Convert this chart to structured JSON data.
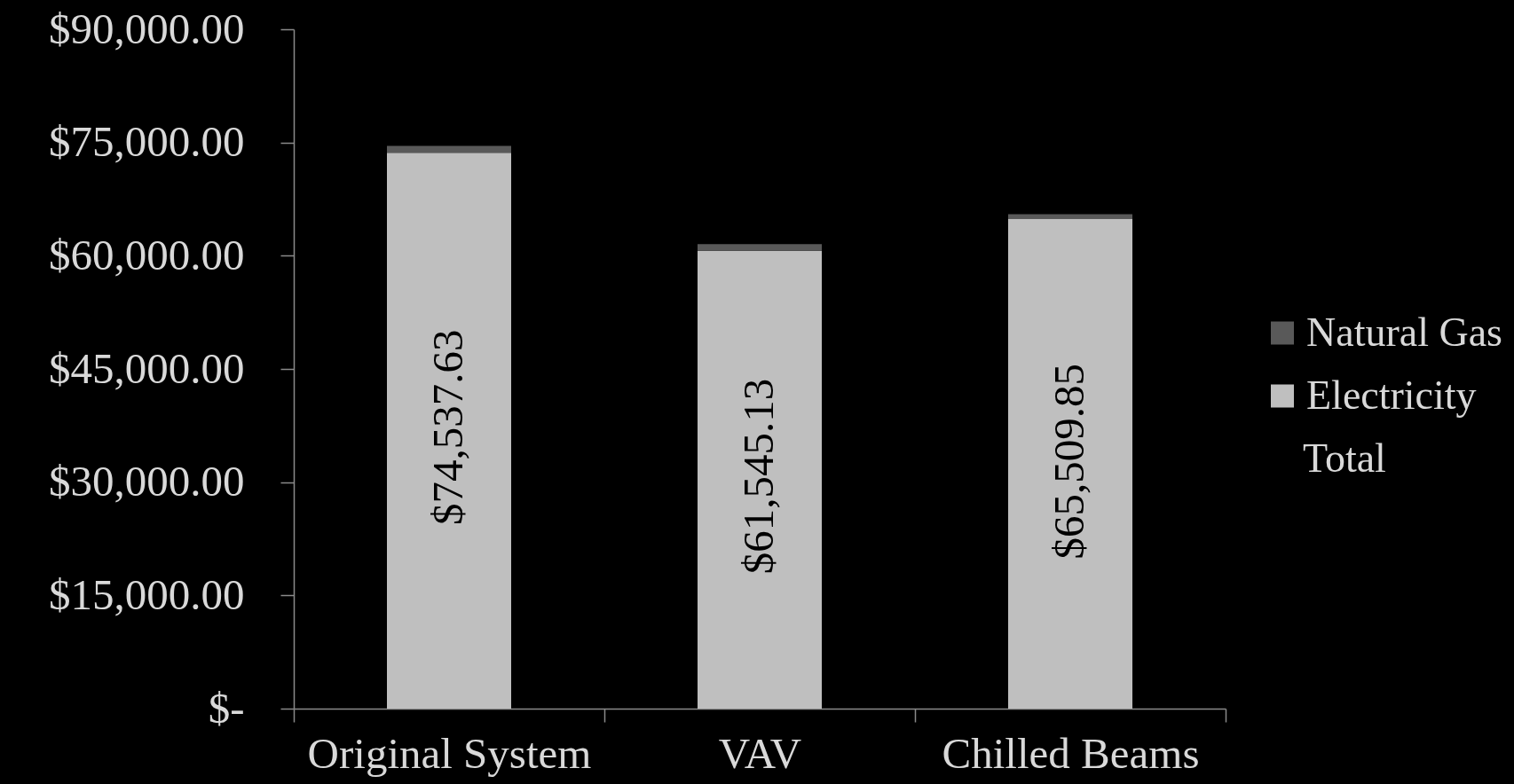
{
  "chart_data": {
    "type": "bar",
    "stacked": true,
    "categories": [
      "Original System",
      "VAV",
      "Chilled Beams"
    ],
    "series": [
      {
        "name": "Electricity",
        "color": "#bfbfbf",
        "values": [
          73637.63,
          60645.13,
          64909.85
        ]
      },
      {
        "name": "Natural Gas",
        "color": "#595959",
        "values": [
          900,
          900,
          600
        ]
      }
    ],
    "totals": [
      "$74,537.63",
      "$61,545.13",
      "$65,509.85"
    ],
    "annotations": [
      "Total"
    ],
    "ylim": [
      0,
      90000
    ],
    "yticks": [
      {
        "value": 0,
        "label": "$-"
      },
      {
        "value": 15000,
        "label": "$15,000.00"
      },
      {
        "value": 30000,
        "label": "$30,000.00"
      },
      {
        "value": 45000,
        "label": "$45,000.00"
      },
      {
        "value": 60000,
        "label": "$60,000.00"
      },
      {
        "value": 75000,
        "label": "$75,000.00"
      },
      {
        "value": 90000,
        "label": "$90,000.00"
      }
    ],
    "legend": "right",
    "grid": false
  }
}
